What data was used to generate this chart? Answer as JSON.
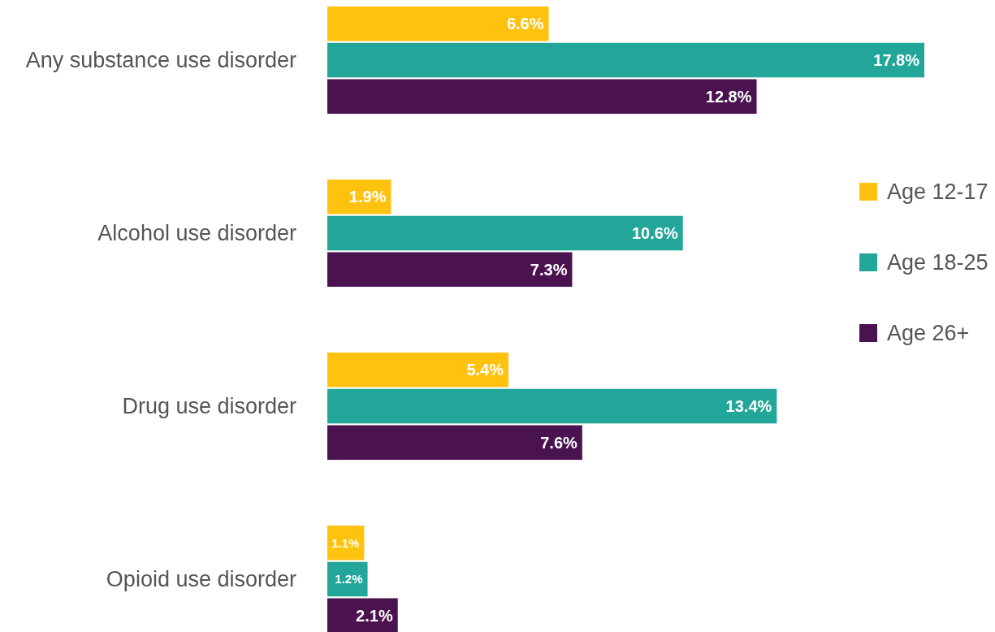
{
  "chart_data": {
    "type": "bar",
    "orientation": "horizontal",
    "categories": [
      "Any substance use disorder",
      "Alcohol use disorder",
      "Drug use disorder",
      "Opioid use disorder"
    ],
    "series": [
      {
        "name": "Age 12-17",
        "color": "#ffc20e",
        "values": [
          6.6,
          1.9,
          5.4,
          1.1
        ],
        "value_labels": [
          "6.6%",
          "1.9%",
          "5.4%",
          "1.1%"
        ]
      },
      {
        "name": "Age 18-25",
        "color": "#22a699",
        "values": [
          17.8,
          10.6,
          13.4,
          1.2
        ],
        "value_labels": [
          "17.8%",
          "10.6%",
          "13.4%",
          "1.2%"
        ]
      },
      {
        "name": "Age 26+",
        "color": "#4b1250",
        "values": [
          12.8,
          7.3,
          7.6,
          2.1
        ],
        "value_labels": [
          "12.8%",
          "7.3%",
          "7.6%",
          "2.1%"
        ]
      }
    ],
    "xlim": [
      0,
      20
    ],
    "legend": "right"
  }
}
